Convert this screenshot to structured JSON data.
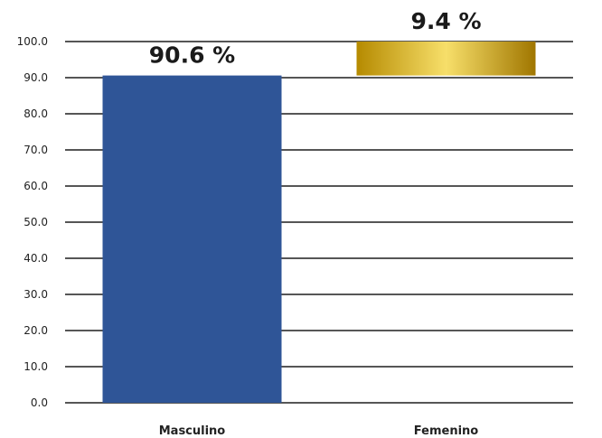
{
  "chart_data": {
    "type": "bar",
    "stacked": true,
    "categories": [
      "Masculino",
      "Femenino"
    ],
    "values": [
      90.6,
      9.4
    ],
    "base": [
      0,
      90.6
    ],
    "data_labels": [
      "90.6 %",
      "9.4 %"
    ],
    "ylim": [
      0,
      100
    ],
    "yticks": [
      "0.0",
      "10.0",
      "20.0",
      "30.0",
      "40.0",
      "50.0",
      "60.0",
      "70.0",
      "80.0",
      "90.0",
      "100.0"
    ],
    "ytick_values": [
      0,
      10,
      20,
      30,
      40,
      50,
      60,
      70,
      80,
      90,
      100
    ],
    "grid": true,
    "colors": [
      "#2f5597",
      "#c9a400"
    ]
  }
}
